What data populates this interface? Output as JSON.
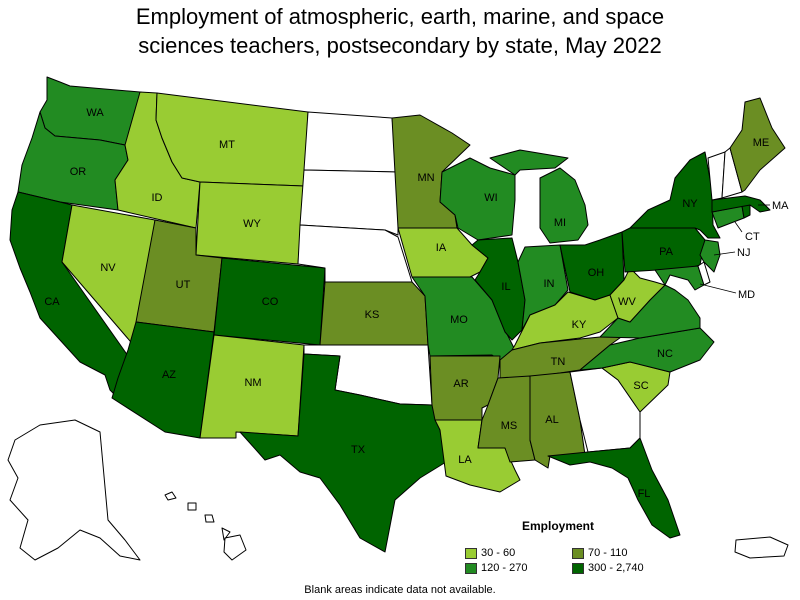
{
  "title_line1": "Employment of atmospheric, earth, marine, and space",
  "title_line2": "sciences teachers, postsecondary by state, May 2022",
  "legend": {
    "title": "Employment",
    "items": [
      {
        "label": "30 - 60",
        "color": "#99cc33"
      },
      {
        "label": "70 - 110",
        "color": "#6b8e23"
      },
      {
        "label": "120 - 270",
        "color": "#228b22"
      },
      {
        "label": "300 - 2,740",
        "color": "#006400"
      }
    ]
  },
  "note": "Blank areas indicate data not available.",
  "colors": {
    "none": "#ffffff"
  },
  "states": {
    "WA": {
      "label": "WA",
      "bin": 2
    },
    "OR": {
      "label": "OR",
      "bin": 2
    },
    "CA": {
      "label": "CA",
      "bin": 3
    },
    "ID": {
      "label": "ID",
      "bin": 0
    },
    "NV": {
      "label": "NV",
      "bin": 0
    },
    "MT": {
      "label": "MT",
      "bin": 0
    },
    "WY": {
      "label": "WY",
      "bin": 0
    },
    "UT": {
      "label": "UT",
      "bin": 1
    },
    "AZ": {
      "label": "AZ",
      "bin": 3
    },
    "CO": {
      "label": "CO",
      "bin": 3
    },
    "NM": {
      "label": "NM",
      "bin": 0
    },
    "ND": {
      "label": "",
      "bin": -1
    },
    "SD": {
      "label": "",
      "bin": -1
    },
    "NE": {
      "label": "",
      "bin": -1
    },
    "KS": {
      "label": "KS",
      "bin": 1
    },
    "OK": {
      "label": "",
      "bin": -1
    },
    "TX": {
      "label": "TX",
      "bin": 3
    },
    "MN": {
      "label": "MN",
      "bin": 1
    },
    "IA": {
      "label": "IA",
      "bin": 0
    },
    "MO": {
      "label": "MO",
      "bin": 2
    },
    "AR": {
      "label": "AR",
      "bin": 1
    },
    "LA": {
      "label": "LA",
      "bin": 0
    },
    "WI": {
      "label": "WI",
      "bin": 2
    },
    "IL": {
      "label": "IL",
      "bin": 3
    },
    "MI": {
      "label": "MI",
      "bin": 2
    },
    "IN": {
      "label": "IN",
      "bin": 2
    },
    "OH": {
      "label": "OH",
      "bin": 3
    },
    "KY": {
      "label": "KY",
      "bin": 0
    },
    "TN": {
      "label": "TN",
      "bin": 1
    },
    "MS": {
      "label": "MS",
      "bin": 1
    },
    "AL": {
      "label": "AL",
      "bin": 1
    },
    "GA": {
      "label": "",
      "bin": -1
    },
    "FL": {
      "label": "FL",
      "bin": 3
    },
    "SC": {
      "label": "SC",
      "bin": 0
    },
    "NC": {
      "label": "NC",
      "bin": 2
    },
    "VA": {
      "label": "",
      "bin": 2
    },
    "WV": {
      "label": "WV",
      "bin": 0
    },
    "PA": {
      "label": "PA",
      "bin": 3
    },
    "NY": {
      "label": "NY",
      "bin": 3
    },
    "ME": {
      "label": "ME",
      "bin": 1
    },
    "VT": {
      "label": "",
      "bin": -1
    },
    "NH": {
      "label": "",
      "bin": -1
    },
    "MA": {
      "label": "MA",
      "bin": 3
    },
    "CT": {
      "label": "CT",
      "bin": 2
    },
    "RI": {
      "label": "",
      "bin": 3
    },
    "NJ": {
      "label": "NJ",
      "bin": 2
    },
    "MD": {
      "label": "MD",
      "bin": 2
    },
    "DE": {
      "label": "",
      "bin": -1
    },
    "AK": {
      "label": "",
      "bin": -1
    },
    "HI": {
      "label": "",
      "bin": -1
    },
    "PR": {
      "label": "",
      "bin": -1
    }
  }
}
